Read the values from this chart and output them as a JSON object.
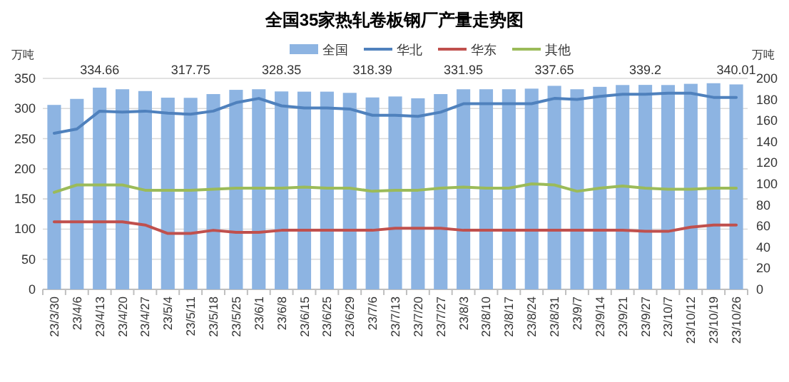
{
  "chart_data": {
    "type": "bar",
    "title": "全国35家热轧卷板钢厂产量走势图",
    "ylabel": "万吨",
    "y2label": "万吨",
    "categories": [
      "23/3/30",
      "23/4/6",
      "23/4/13",
      "23/4/20",
      "23/4/27",
      "23/5/4",
      "23/5/11",
      "23/5/18",
      "23/5/25",
      "23/6/1",
      "23/6/8",
      "23/6/15",
      "23/6/25",
      "23/6/29",
      "23/7/6",
      "23/7/13",
      "23/7/20",
      "23/7/27",
      "23/8/3",
      "23/8/10",
      "23/8/17",
      "23/8/24",
      "23/8/31",
      "23/9/7",
      "23/9/14",
      "23/9/21",
      "23/9/27",
      "23/10/7",
      "23/10/12",
      "23/10/19",
      "23/10/26"
    ],
    "series": [
      {
        "name": "全国",
        "color": "#8db4e2",
        "values": [
          306,
          316,
          334.66,
          332,
          329,
          318,
          317.75,
          324,
          331,
          332,
          328.35,
          328,
          328,
          326,
          318.39,
          320,
          317,
          324,
          331.95,
          332,
          332,
          333,
          337.65,
          332,
          336,
          339,
          339.2,
          339,
          341,
          342,
          340.01
        ],
        "value_labels": [
          null,
          null,
          "334.66",
          null,
          null,
          null,
          "317.75",
          null,
          null,
          null,
          "328.35",
          null,
          null,
          null,
          "318.39",
          null,
          null,
          null,
          "331.95",
          null,
          null,
          null,
          "337.65",
          null,
          null,
          null,
          "339.2",
          null,
          null,
          null,
          "340.01"
        ]
      },
      {
        "name": "华北",
        "type": "line",
        "axis": "y2",
        "color": "#4f81bd",
        "values": [
          148,
          152,
          169,
          168,
          169,
          167,
          166,
          169,
          177,
          181,
          174,
          172,
          172,
          171,
          165,
          165,
          164,
          168,
          176,
          176,
          176,
          176,
          181,
          180,
          183,
          185,
          185,
          186,
          186,
          182,
          182
        ]
      },
      {
        "name": "华东",
        "type": "line",
        "axis": "y2",
        "color": "#c0504d",
        "values": [
          64,
          64,
          64,
          64,
          61,
          53,
          53,
          56,
          54,
          54,
          56,
          56,
          56,
          56,
          56,
          58,
          58,
          58,
          56,
          56,
          56,
          56,
          56,
          56,
          56,
          56,
          55,
          55,
          59,
          61,
          61
        ]
      },
      {
        "name": "其他",
        "type": "line",
        "axis": "y2",
        "color": "#9bbb59",
        "values": [
          92,
          99,
          99,
          99,
          94,
          94,
          94,
          95,
          96,
          96,
          96,
          97,
          96,
          96,
          93,
          94,
          94,
          96,
          97,
          96,
          96,
          100,
          99,
          93,
          96,
          98,
          96,
          95,
          95,
          96,
          96
        ]
      }
    ],
    "ylim": [
      0,
      350
    ],
    "yticks": [
      0,
      50,
      100,
      150,
      200,
      250,
      300,
      350
    ],
    "y2lim": [
      0,
      200
    ],
    "y2ticks": [
      0,
      20,
      40,
      60,
      80,
      100,
      120,
      140,
      160,
      180,
      200
    ],
    "grid": "y",
    "legend": "top"
  }
}
